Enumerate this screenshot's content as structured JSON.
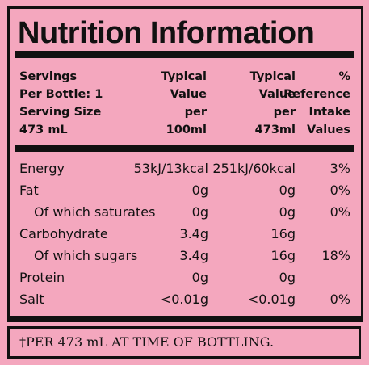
{
  "title": "Nutrition Information",
  "header": [
    [
      "Servings",
      "Per Bottle: 1",
      "Serving Size",
      "473 mL"
    ],
    [
      "Typical",
      "Value",
      "per",
      "100ml"
    ],
    [
      "Typical",
      "Value",
      "per",
      "473ml"
    ],
    [
      "%",
      "Reference",
      "Intake",
      "Values"
    ]
  ],
  "rows": [
    {
      "label": "Energy",
      "per_100ml": "53kJ/13kcal",
      "per_serving": "251kJ/60kcal",
      "reference_intake": "3%"
    },
    {
      "label": "Fat",
      "per_100ml": "0g",
      "per_serving": "0g",
      "reference_intake": "0%"
    },
    {
      "label": "Of which saturates",
      "per_100ml": "0g",
      "per_serving": "0g",
      "reference_intake": "0%"
    },
    {
      "label": "Carbohydrate",
      "per_100ml": "3.4g",
      "per_serving": "16g"
    },
    {
      "label": "Of which sugars",
      "per_100ml": "3.4g",
      "per_serving": "16g",
      "reference_intake": "18%"
    },
    {
      "label": "Protein",
      "per_100ml": "0g",
      "per_serving": "0g"
    },
    {
      "label": "Salt",
      "per_100ml": "<0.01g",
      "per_serving": "<0.01g",
      "reference_intake": "0%"
    }
  ],
  "footnote": "†PER 473 mL AT TIME OF BOTTLING."
}
